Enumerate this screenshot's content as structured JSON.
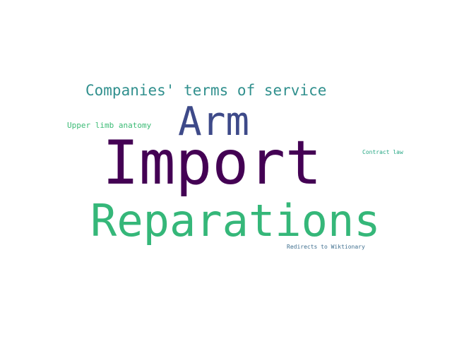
{
  "words": [
    {
      "text": "Import",
      "color": "#440154"
    },
    {
      "text": "Reparations",
      "color": "#35b779"
    },
    {
      "text": "Arm",
      "color": "#3e4a89"
    },
    {
      "text": "Companies' terms of service",
      "color": "#31908e"
    },
    {
      "text": "Upper limb anatomy",
      "color": "#3bbb75"
    },
    {
      "text": "Contract law",
      "color": "#26a784"
    },
    {
      "text": "Redirects to Wiktionary",
      "color": "#3f6f8f"
    }
  ]
}
